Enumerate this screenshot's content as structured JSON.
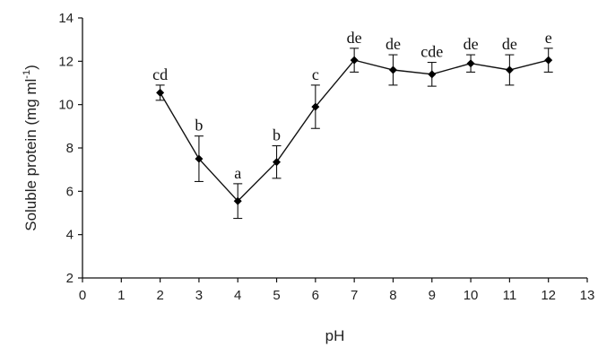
{
  "chart_data": {
    "type": "line",
    "title": "",
    "xlabel": "pH",
    "ylabel_main": "Soluble protein (mg ml",
    "ylabel_sup": "-1",
    "ylabel_close": ")",
    "xlim": [
      0,
      13
    ],
    "ylim": [
      2,
      14
    ],
    "xticks": [
      0,
      1,
      2,
      3,
      4,
      5,
      6,
      7,
      8,
      9,
      10,
      11,
      12,
      13
    ],
    "yticks": [
      2,
      4,
      6,
      8,
      10,
      12,
      14
    ],
    "grid": false,
    "series": [
      {
        "x": [
          2,
          3,
          4,
          5,
          6,
          7,
          8,
          9,
          10,
          11,
          12
        ],
        "y": [
          10.55,
          7.5,
          5.55,
          7.35,
          9.9,
          12.05,
          11.6,
          11.4,
          11.9,
          11.6,
          12.05
        ],
        "err": [
          0.35,
          1.05,
          0.8,
          0.75,
          1.0,
          0.55,
          0.7,
          0.55,
          0.4,
          0.7,
          0.55
        ],
        "labels": [
          "cd",
          "b",
          "a",
          "b",
          "c",
          "de",
          "de",
          "cde",
          "de",
          "de",
          "e"
        ]
      }
    ]
  }
}
